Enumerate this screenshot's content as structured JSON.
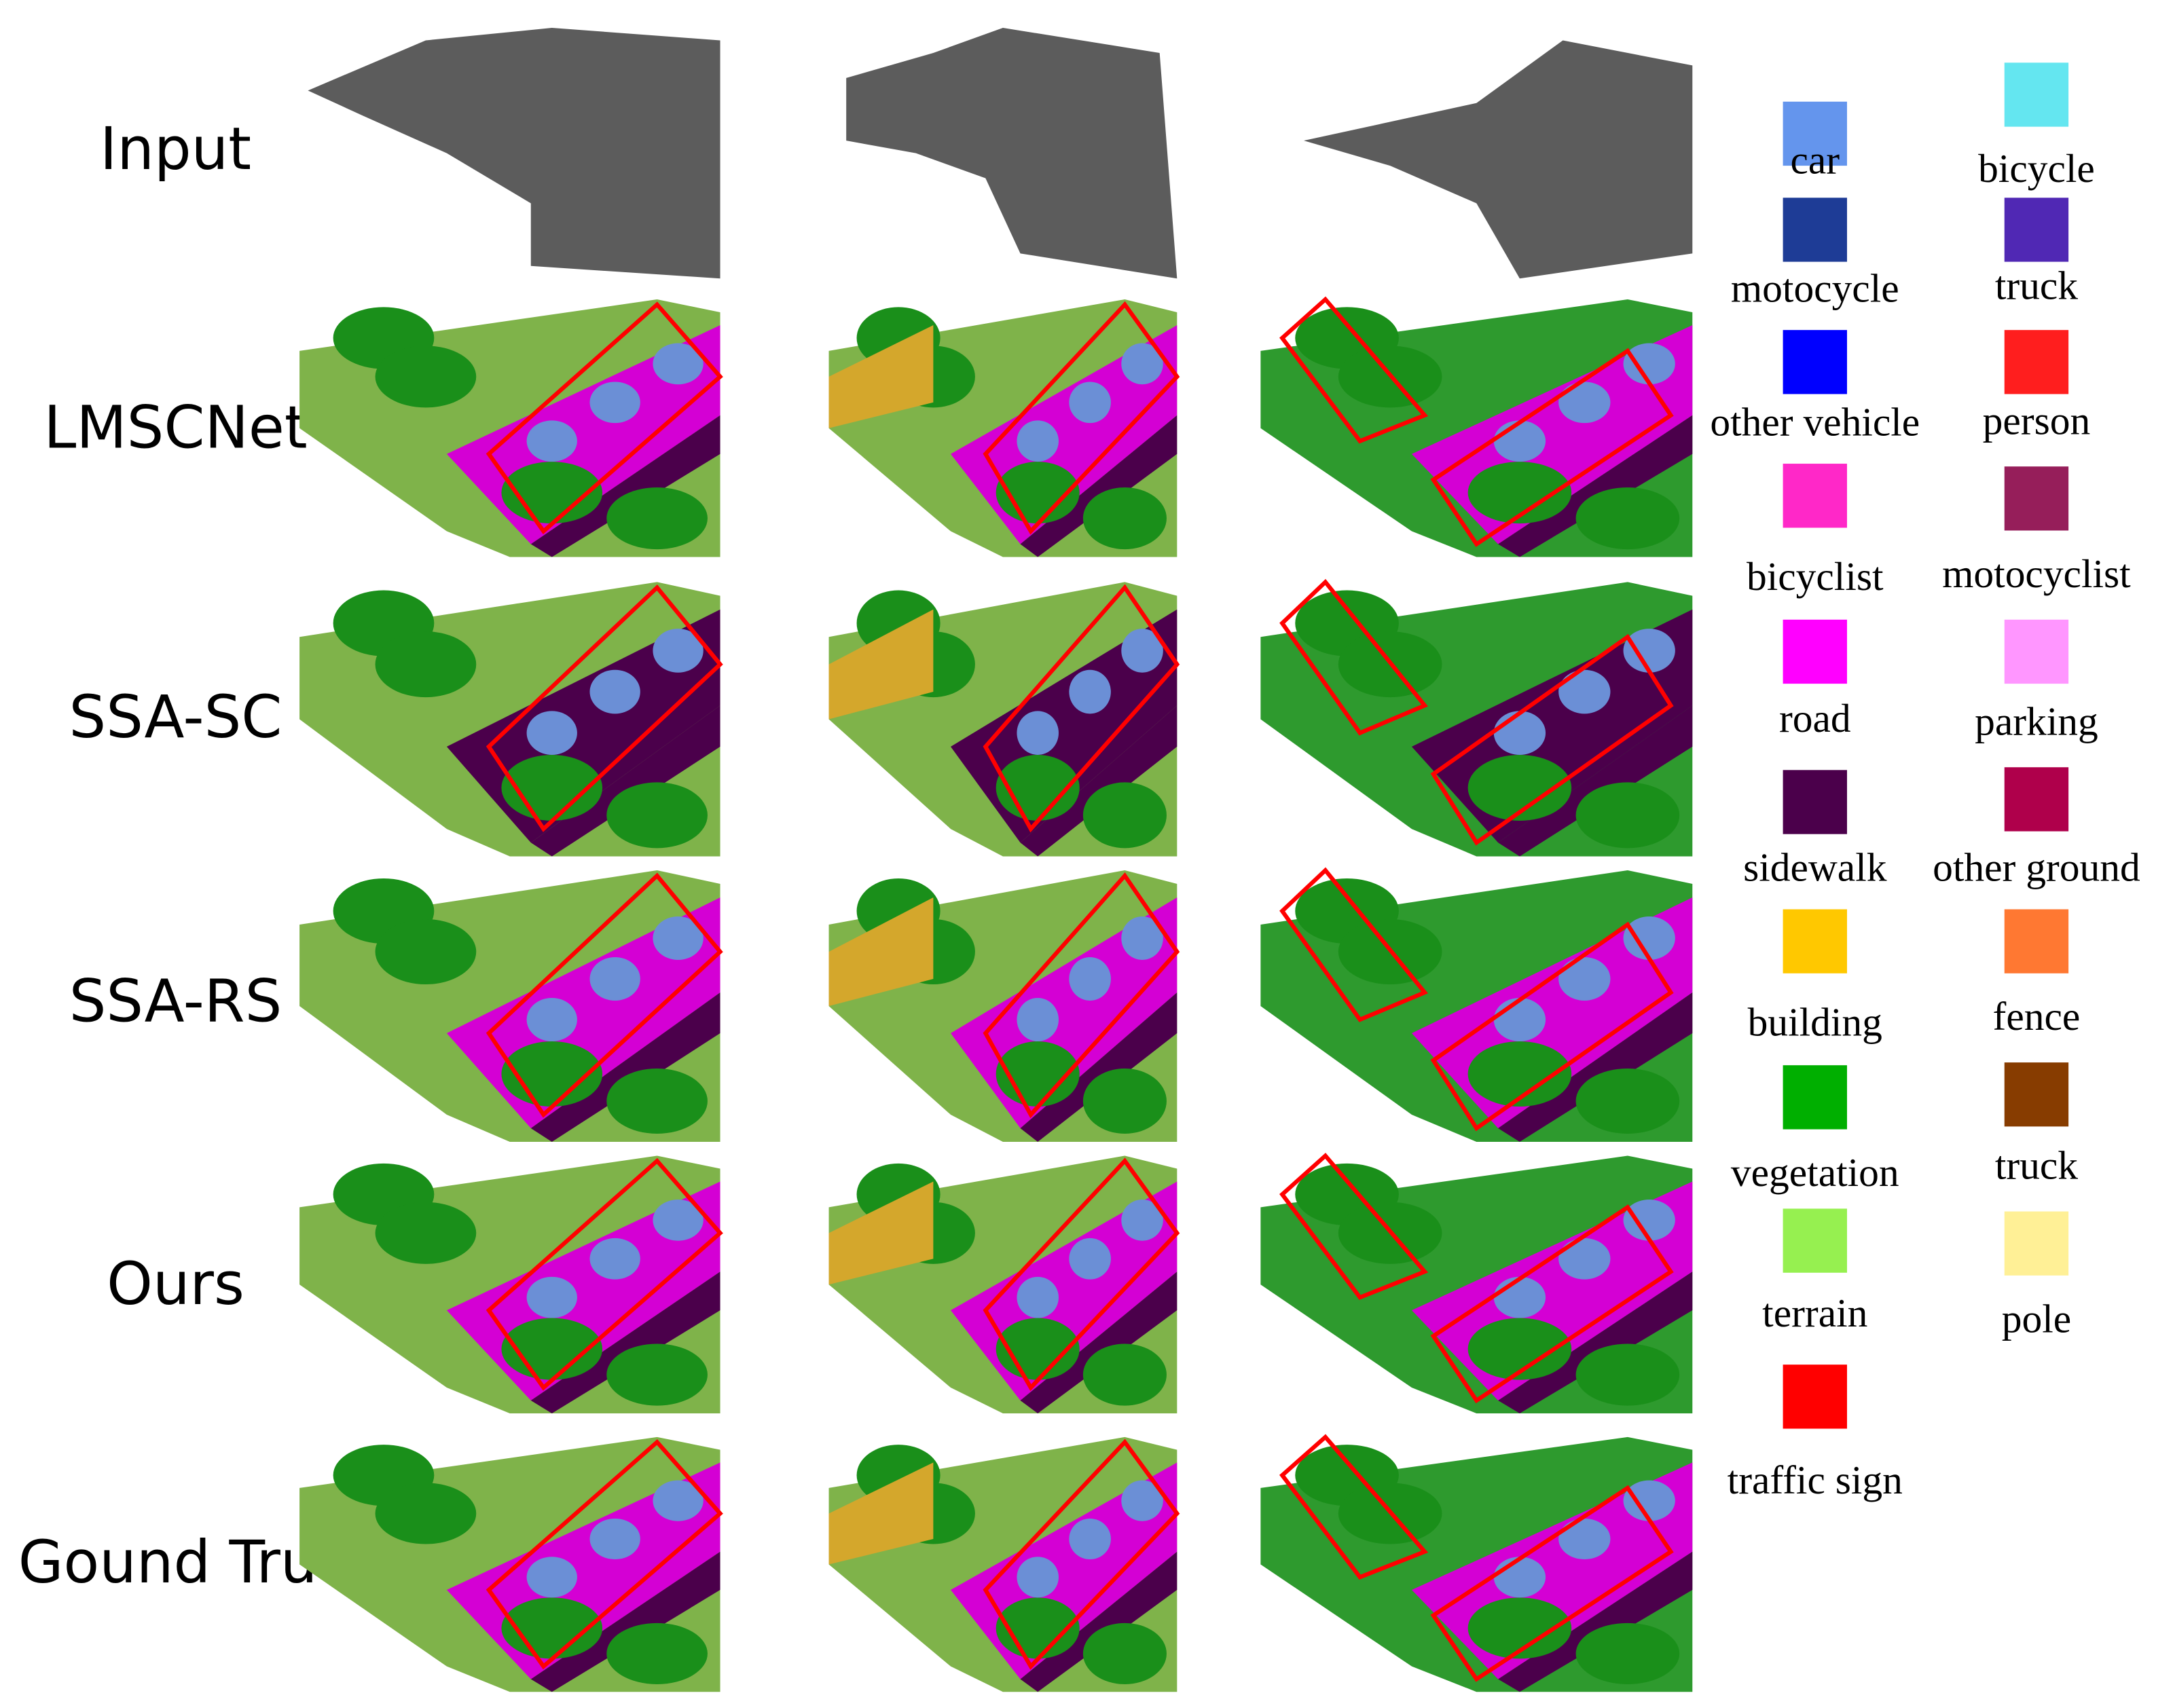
{
  "figure": {
    "row_labels": [
      "Input",
      "LMSCNet",
      "SSA-SC",
      "SSA-RS",
      "Ours",
      "Gound Truth"
    ],
    "legend": [
      {
        "label": "car",
        "color": "#6495ED"
      },
      {
        "label": "bicycle",
        "color": "#64E6F0"
      },
      {
        "label": "motocycle",
        "color": "#1E3C96"
      },
      {
        "label": "truck",
        "color": "#5028B4"
      },
      {
        "label": "other vehicle",
        "color": "#0000FF"
      },
      {
        "label": "person",
        "color": "#FF1E1E"
      },
      {
        "label": "bicyclist",
        "color": "#FF28C8"
      },
      {
        "label": "motocyclist",
        "color": "#961E5A"
      },
      {
        "label": "road",
        "color": "#FF00FF"
      },
      {
        "label": "parking",
        "color": "#FF96FF"
      },
      {
        "label": "sidewalk",
        "color": "#4B004B"
      },
      {
        "label": "other ground",
        "color": "#AF004B"
      },
      {
        "label": "building",
        "color": "#FFC800"
      },
      {
        "label": "fence",
        "color": "#FF7832"
      },
      {
        "label": "vegetation",
        "color": "#00AF00"
      },
      {
        "label": "truck",
        "color": "#873C00"
      },
      {
        "label": "terrain",
        "color": "#96F050"
      },
      {
        "label": "pole",
        "color": "#FFF096"
      },
      {
        "label": "traffic sign",
        "color": "#FF0000"
      }
    ]
  }
}
